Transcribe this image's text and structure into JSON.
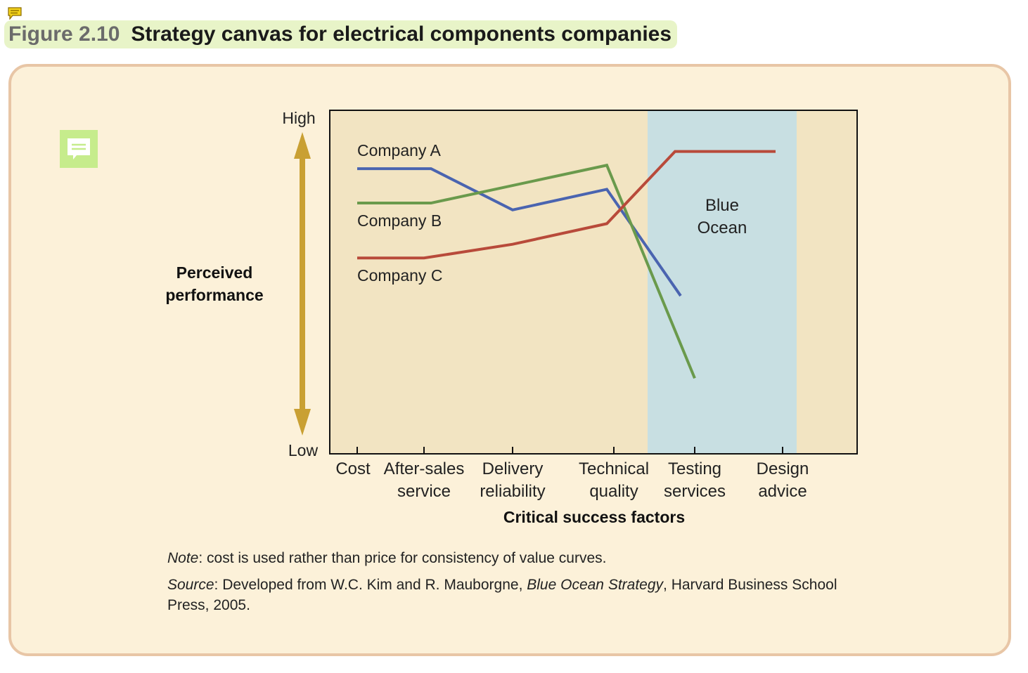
{
  "figure": {
    "number": "Figure 2.10",
    "title": "Strategy canvas for electrical components companies"
  },
  "icons": {
    "top": "note-icon",
    "side": "comment-icon"
  },
  "colors": {
    "background_panel": "#fcf1d9",
    "plot_background": "#f2e4c2",
    "blue_ocean_band": "#c8dfe2",
    "arrow": "#c9a033",
    "company_a": "#4a64b0",
    "company_b": "#6a9a4c",
    "company_c": "#b84a3a"
  },
  "chart_data": {
    "type": "line",
    "ylabel": "Perceived performance",
    "xlabel": "Critical success factors",
    "y_axis_high": "High",
    "y_axis_low": "Low",
    "categories": [
      "Cost",
      "After-sales service",
      "Delivery reliability",
      "Technical quality",
      "Testing services",
      "Design advice"
    ],
    "series": [
      {
        "name": "Company A",
        "values": [
          8.3,
          8.3,
          7.1,
          7.7,
          4.6,
          null
        ]
      },
      {
        "name": "Company B",
        "values": [
          7.3,
          7.3,
          null,
          8.4,
          2.2,
          null
        ]
      },
      {
        "name": "Company C",
        "values": [
          5.7,
          5.7,
          6.1,
          6.7,
          8.8,
          8.8
        ]
      }
    ],
    "ylim": [
      0,
      10
    ],
    "annotations": [
      {
        "text": "Blue Ocean",
        "region_categories": [
          "Testing services",
          "Design advice"
        ]
      }
    ]
  },
  "notes": {
    "note_label": "Note",
    "note_text": ": cost is used rather than price for consistency of value curves.",
    "source_label": "Source",
    "source_text_1": ": Developed from W.C. Kim and R. Mauborgne, ",
    "source_book": "Blue Ocean Strategy",
    "source_text_2": ", Harvard Business School Press, 2005."
  }
}
